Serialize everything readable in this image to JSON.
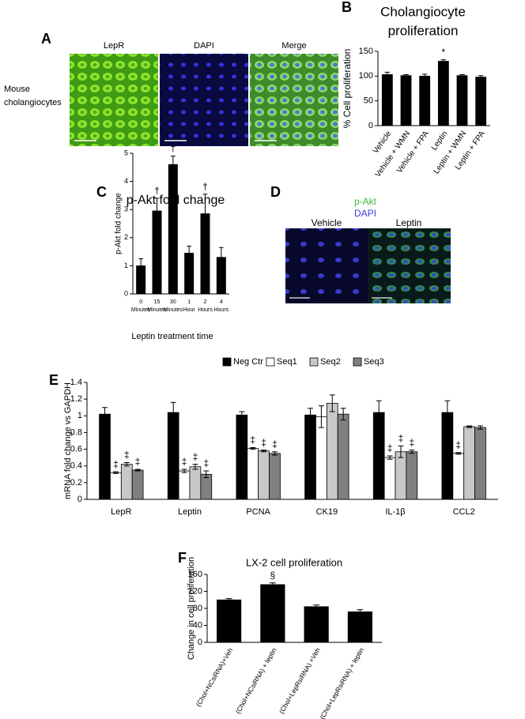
{
  "images": [
    {
      "panel": "A",
      "labels": [
        "LepR",
        "DAPI",
        "Merge"
      ],
      "row_label": [
        "Mouse",
        "cholangiocytes"
      ]
    },
    {
      "panel": "D",
      "stains": [
        {
          "name": "p-Akt",
          "color": "#3cb83c"
        },
        {
          "name": "DAPI",
          "color": "#3a3adc"
        }
      ],
      "labels": [
        "Vehicle",
        "Leptin"
      ]
    }
  ],
  "chart_data": [
    {
      "type": "bar",
      "panel": "B",
      "title": [
        "Cholangiocyte",
        "proliferation"
      ],
      "y_label": "% Cell proliferation",
      "categories": [
        "Vehicle",
        "Vehicle + WMN",
        "Vehicle + FPA",
        "Leptin",
        "Leptin + WMN",
        "Leptin + FPA"
      ],
      "values": [
        103,
        101,
        100,
        130,
        101,
        98
      ],
      "errors": [
        5,
        2,
        4,
        3,
        2,
        3
      ],
      "annotations": [
        null,
        null,
        null,
        "*",
        null,
        null
      ],
      "color": "#000000",
      "ylim": [
        0,
        150
      ],
      "yticks": [
        0,
        50,
        100,
        150
      ]
    },
    {
      "type": "bar",
      "panel": "C",
      "title": [
        "p-Akt fold change"
      ],
      "y_label": "p-Akt fold change",
      "x_label": "Leptin treatment time",
      "categories": [
        [
          "0",
          "Minutes"
        ],
        [
          "15",
          "Minutes"
        ],
        [
          "30",
          "Minutes"
        ],
        [
          "1",
          "Hour"
        ],
        [
          "2",
          "Hours"
        ],
        [
          "4",
          "Hours"
        ]
      ],
      "values": [
        1.0,
        2.95,
        4.6,
        1.45,
        2.85,
        1.3
      ],
      "errors": [
        0.25,
        0.45,
        0.3,
        0.25,
        0.7,
        0.35
      ],
      "annotations": [
        null,
        "†",
        "†",
        null,
        "†",
        null
      ],
      "color": "#000000",
      "ylim": [
        0,
        5
      ],
      "yticks": [
        0,
        1,
        2,
        3,
        4,
        5
      ]
    },
    {
      "type": "bar",
      "panel": "E",
      "y_label": "mRNA fold change vs GAPDH",
      "categories": [
        "LepR",
        "Leptin",
        "PCNA",
        "CK19",
        "IL-1β",
        "CCL2"
      ],
      "series": [
        {
          "name": "Neg Ctr",
          "color": "#000000",
          "values": [
            1.02,
            1.04,
            1.01,
            1.01,
            1.04,
            1.04
          ],
          "errors": [
            0.08,
            0.12,
            0.04,
            0.08,
            0.14,
            0.14
          ],
          "annotations": [
            null,
            null,
            null,
            null,
            null,
            null
          ]
        },
        {
          "name": "Seq1",
          "color": "#ffffff",
          "values": [
            0.32,
            0.34,
            0.61,
            0.99,
            0.5,
            0.55
          ],
          "errors": [
            0.01,
            0.02,
            0.01,
            0.13,
            0.02,
            0.01
          ],
          "annotations": [
            "‡",
            "‡",
            "‡",
            null,
            "‡",
            "‡"
          ]
        },
        {
          "name": "Seq2",
          "color": "#c8c8c8",
          "values": [
            0.42,
            0.39,
            0.58,
            1.15,
            0.57,
            0.87
          ],
          "errors": [
            0.02,
            0.03,
            0.01,
            0.1,
            0.07,
            0.01
          ],
          "annotations": [
            "‡",
            "‡",
            "‡",
            null,
            "‡",
            null
          ]
        },
        {
          "name": "Seq3",
          "color": "#808080",
          "values": [
            0.35,
            0.3,
            0.55,
            1.02,
            0.57,
            0.86
          ],
          "errors": [
            0.01,
            0.04,
            0.02,
            0.07,
            0.02,
            0.02
          ],
          "annotations": [
            "‡",
            "‡",
            "‡",
            null,
            "‡",
            null
          ]
        }
      ],
      "ylim": [
        0,
        1.4
      ],
      "yticks": [
        0,
        0.2,
        0.4,
        0.6,
        0.8,
        1,
        1.2,
        1.4
      ]
    },
    {
      "type": "bar",
      "panel": "F",
      "title": [
        "LX-2 cell proliferation"
      ],
      "y_label": "Change in cell proliferation",
      "categories": [
        "(Chol+NCsiRNA)+Veh",
        "(Chol+NCsiRNA) + leptin",
        "(Chol+LepRsiRNA) +Veh",
        "(Chol+LepRsiRNA) + leptin"
      ],
      "values": [
        100,
        136,
        84,
        72
      ],
      "errors": [
        3,
        4,
        4,
        5
      ],
      "annotations": [
        null,
        "§",
        null,
        null
      ],
      "color": "#000000",
      "ylim": [
        0,
        160
      ],
      "yticks": [
        0,
        40,
        80,
        120,
        160
      ]
    }
  ]
}
